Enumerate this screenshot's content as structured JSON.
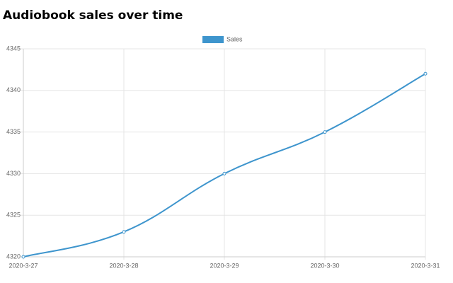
{
  "chart_data": {
    "type": "line",
    "title": "Audiobook sales over time",
    "categories": [
      "2020-3-27",
      "2020-3-28",
      "2020-3-29",
      "2020-3-30",
      "2020-3-31"
    ],
    "series": [
      {
        "name": "Sales",
        "color": "#3e95cd",
        "values": [
          4320,
          4323,
          4330,
          4335,
          4342
        ]
      }
    ],
    "ylim": [
      4320,
      4345
    ],
    "yticks": [
      4320,
      4325,
      4330,
      4335,
      4340,
      4345
    ],
    "grid": true,
    "legend": "top"
  }
}
